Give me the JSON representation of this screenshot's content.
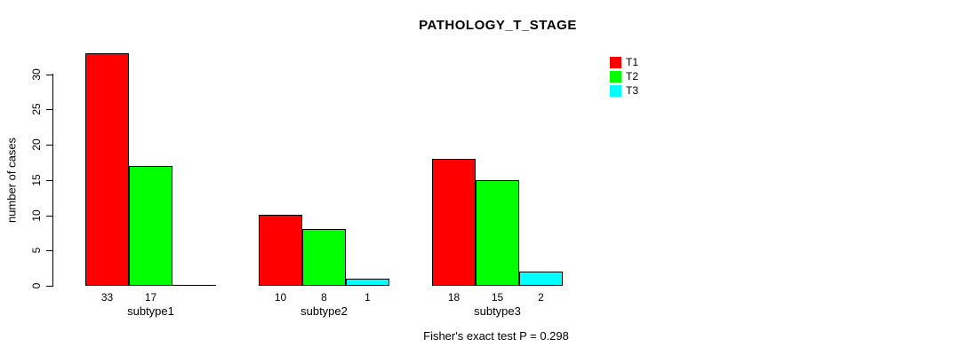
{
  "title": "PATHOLOGY_T_STAGE",
  "caption": "Fisher's exact test P = 0.298",
  "y_axis": {
    "label": "number of cases"
  },
  "legend": {
    "items": [
      {
        "label": "T1",
        "color": "#FF0000"
      },
      {
        "label": "T2",
        "color": "#00FF00"
      },
      {
        "label": "T3",
        "color": "#00FFFF"
      }
    ]
  },
  "colors": {
    "background": "#FFFFFF",
    "bar_border": "#000000",
    "text": "#000000"
  },
  "chart_data": {
    "type": "bar",
    "grouped": true,
    "title": "PATHOLOGY_T_STAGE",
    "xlabel": "",
    "ylabel": "number of cases",
    "ylim": [
      0,
      30
    ],
    "yticks": [
      0,
      5,
      10,
      15,
      20,
      25,
      30
    ],
    "grid": false,
    "legend_position": "top-right",
    "categories": [
      "subtype1",
      "subtype2",
      "subtype3"
    ],
    "series": [
      {
        "name": "T1",
        "color": "#FF0000",
        "values": [
          33,
          10,
          18
        ]
      },
      {
        "name": "T2",
        "color": "#00FF00",
        "values": [
          17,
          8,
          15
        ]
      },
      {
        "name": "T3",
        "color": "#00FFFF",
        "values": [
          0,
          1,
          2
        ]
      }
    ],
    "bar_value_labels": [
      [
        "33",
        "17",
        ""
      ],
      [
        "10",
        "8",
        "1"
      ],
      [
        "18",
        "15",
        "2"
      ]
    ],
    "annotation": "Fisher's exact test P = 0.298"
  }
}
